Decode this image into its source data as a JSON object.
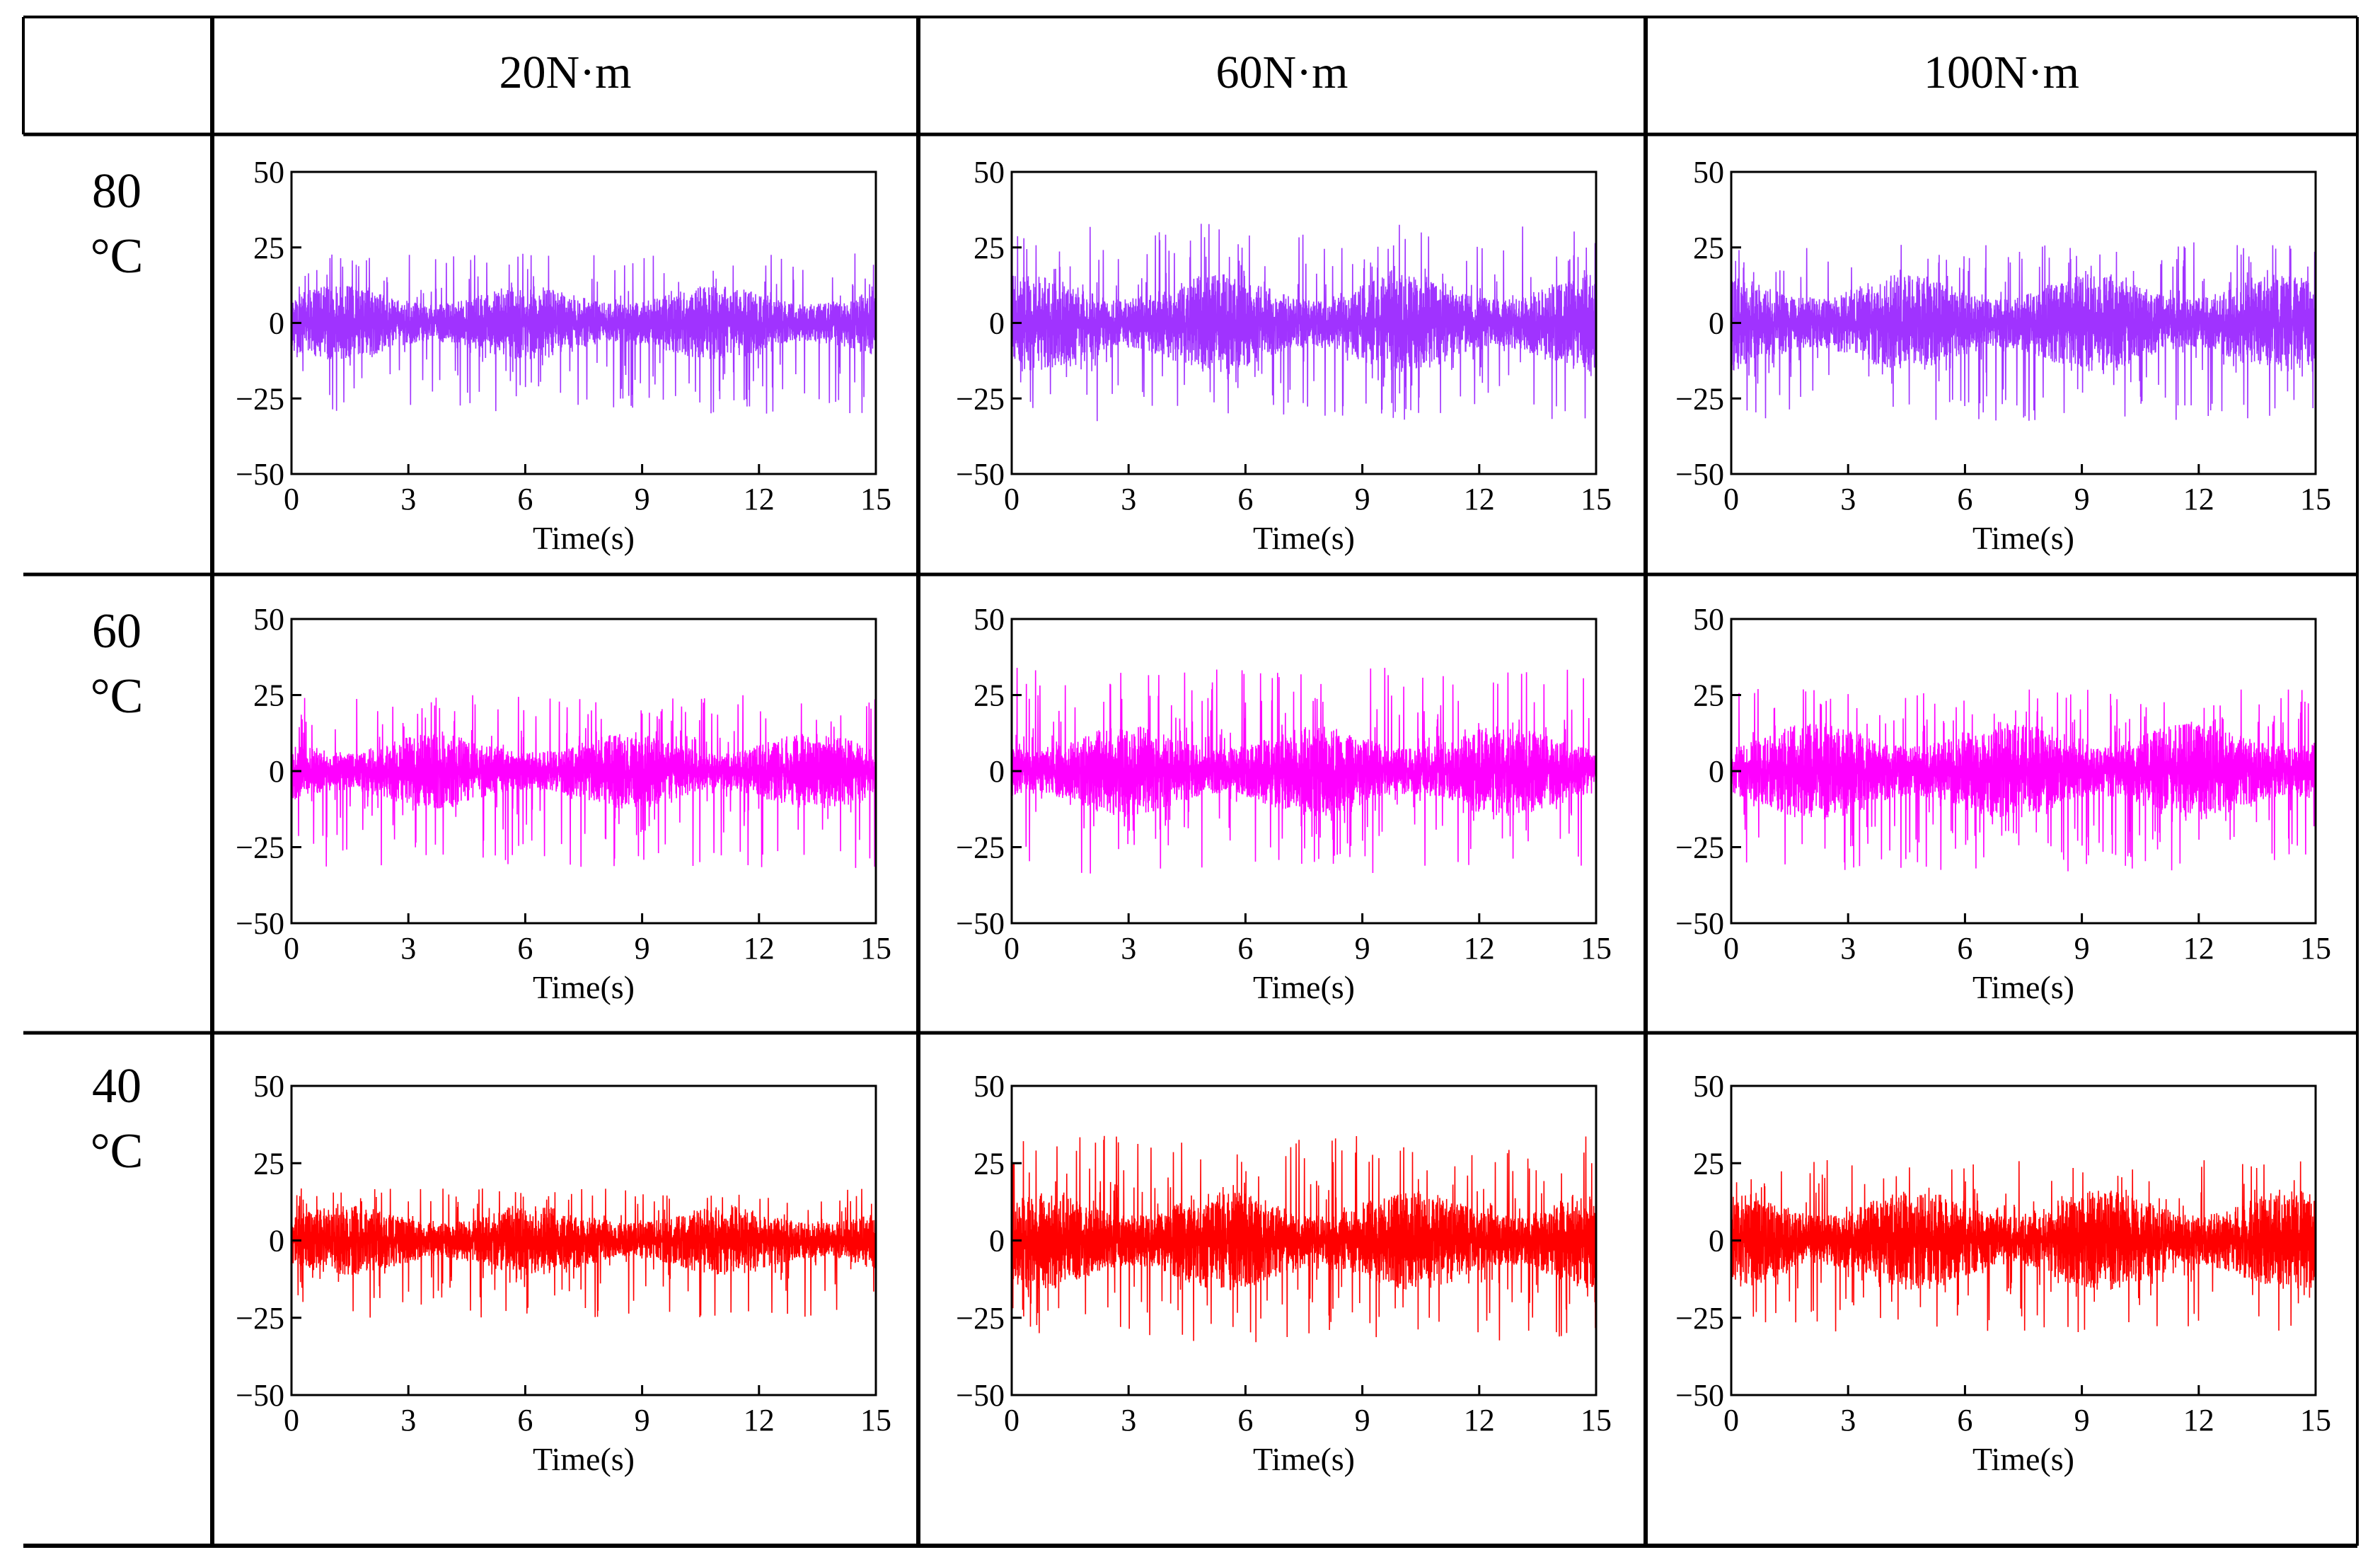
{
  "table": {
    "corner": "",
    "columns": [
      "20N·m",
      "60N·m",
      "100N·m"
    ],
    "rows": [
      {
        "temp": "80",
        "unit": "°C"
      },
      {
        "temp": "60",
        "unit": "°C"
      },
      {
        "temp": "40",
        "unit": "°C"
      }
    ]
  },
  "colors": {
    "80": "#a033ff",
    "60": "#ff00ff",
    "40": "#ff0000"
  },
  "chart_data": [
    {
      "type": "line",
      "row": "80°C",
      "column": "20N·m",
      "series_color": "#a033ff",
      "x_range": [
        0,
        15
      ],
      "ylim": [
        -50,
        50
      ],
      "xticks": [
        0,
        3,
        6,
        9,
        12,
        15
      ],
      "yticks": [
        50,
        25,
        0,
        -25,
        -50
      ],
      "xlabel": "Time(s)",
      "ylabel": "",
      "envelope_core": [
        -10,
        10
      ],
      "peak_range": [
        -30,
        23
      ]
    },
    {
      "type": "line",
      "row": "80°C",
      "column": "60N·m",
      "series_color": "#a033ff",
      "x_range": [
        0,
        15
      ],
      "ylim": [
        -50,
        50
      ],
      "xticks": [
        0,
        3,
        6,
        9,
        12,
        15
      ],
      "yticks": [
        50,
        25,
        0,
        -25,
        -50
      ],
      "xlabel": "Time(s)",
      "ylabel": "",
      "envelope_core": [
        -13,
        13
      ],
      "peak_range": [
        -33,
        33
      ]
    },
    {
      "type": "line",
      "row": "80°C",
      "column": "100N·m",
      "series_color": "#a033ff",
      "x_range": [
        0,
        15
      ],
      "ylim": [
        -50,
        50
      ],
      "xticks": [
        0,
        3,
        6,
        9,
        12,
        15
      ],
      "yticks": [
        50,
        25,
        0,
        -25,
        -50
      ],
      "xlabel": "Time(s)",
      "ylabel": "",
      "envelope_core": [
        -13,
        13
      ],
      "peak_range": [
        -33,
        27
      ]
    },
    {
      "type": "line",
      "row": "60°C",
      "column": "20N·m",
      "series_color": "#ff00ff",
      "x_range": [
        0,
        15
      ],
      "ylim": [
        -50,
        50
      ],
      "xticks": [
        0,
        3,
        6,
        9,
        12,
        15
      ],
      "yticks": [
        50,
        25,
        0,
        -25,
        -50
      ],
      "xlabel": "Time(s)",
      "ylabel": "",
      "envelope_core": [
        -10,
        10
      ],
      "peak_range": [
        -32,
        25
      ]
    },
    {
      "type": "line",
      "row": "60°C",
      "column": "60N·m",
      "series_color": "#ff00ff",
      "x_range": [
        0,
        15
      ],
      "ylim": [
        -50,
        50
      ],
      "xticks": [
        0,
        3,
        6,
        9,
        12,
        15
      ],
      "yticks": [
        50,
        25,
        0,
        -25,
        -50
      ],
      "xlabel": "Time(s)",
      "ylabel": "",
      "envelope_core": [
        -12,
        12
      ],
      "peak_range": [
        -34,
        34
      ]
    },
    {
      "type": "line",
      "row": "60°C",
      "column": "100N·m",
      "series_color": "#ff00ff",
      "x_range": [
        0,
        15
      ],
      "ylim": [
        -50,
        50
      ],
      "xticks": [
        0,
        3,
        6,
        9,
        12,
        15
      ],
      "yticks": [
        50,
        25,
        0,
        -25,
        -50
      ],
      "xlabel": "Time(s)",
      "ylabel": "",
      "envelope_core": [
        -13,
        13
      ],
      "peak_range": [
        -33,
        27
      ]
    },
    {
      "type": "line",
      "row": "40°C",
      "column": "20N·m",
      "series_color": "#ff0000",
      "x_range": [
        0,
        15
      ],
      "ylim": [
        -50,
        50
      ],
      "xticks": [
        0,
        3,
        6,
        9,
        12,
        15
      ],
      "yticks": [
        50,
        25,
        0,
        -25,
        -50
      ],
      "xlabel": "Time(s)",
      "ylabel": "",
      "envelope_core": [
        -9,
        9
      ],
      "peak_range": [
        -25,
        17
      ]
    },
    {
      "type": "line",
      "row": "40°C",
      "column": "60N·m",
      "series_color": "#ff0000",
      "x_range": [
        0,
        15
      ],
      "ylim": [
        -50,
        50
      ],
      "xticks": [
        0,
        3,
        6,
        9,
        12,
        15
      ],
      "yticks": [
        50,
        25,
        0,
        -25,
        -50
      ],
      "xlabel": "Time(s)",
      "ylabel": "",
      "envelope_core": [
        -13,
        13
      ],
      "peak_range": [
        -33,
        34
      ]
    },
    {
      "type": "line",
      "row": "40°C",
      "column": "100N·m",
      "series_color": "#ff0000",
      "x_range": [
        0,
        15
      ],
      "ylim": [
        -50,
        50
      ],
      "xticks": [
        0,
        3,
        6,
        9,
        12,
        15
      ],
      "yticks": [
        50,
        25,
        0,
        -25,
        -50
      ],
      "xlabel": "Time(s)",
      "ylabel": "",
      "envelope_core": [
        -13,
        13
      ],
      "peak_range": [
        -30,
        26
      ]
    }
  ]
}
